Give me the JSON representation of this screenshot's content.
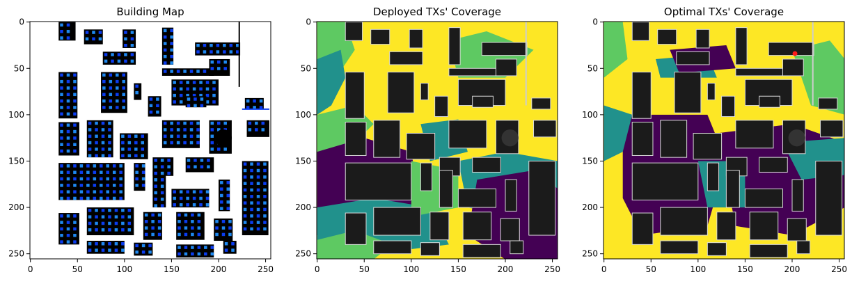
{
  "colors": {
    "building": "#000000",
    "building_gray": "#1b1b1b",
    "building_outline": "#d9d9d9",
    "rx_points": "#0a3cf0",
    "rx_points_alt": "#1e88f0",
    "coverage_high": "#fde725",
    "coverage_mid_high": "#5ec962",
    "coverage_mid": "#21918c",
    "coverage_low": "#440154",
    "tx_marker": "#ff1a1a"
  },
  "chart_data": [
    {
      "type": "heatmap",
      "title": "Building Map",
      "xlim": [
        0,
        255
      ],
      "ylim": [
        255,
        0
      ],
      "xticks": [
        0,
        50,
        100,
        150,
        200,
        250
      ],
      "yticks": [
        0,
        50,
        100,
        150,
        200,
        250
      ]
    },
    {
      "type": "heatmap",
      "title": "Deployed TXs' Coverage",
      "xlim": [
        0,
        255
      ],
      "ylim": [
        255,
        0
      ],
      "xticks": [
        0,
        50,
        100,
        150,
        200,
        250
      ],
      "yticks": [
        0,
        50,
        100,
        150,
        200,
        250
      ]
    },
    {
      "type": "heatmap",
      "title": "Optimal TXs' Coverage",
      "xlim": [
        0,
        255
      ],
      "ylim": [
        255,
        0
      ],
      "xticks": [
        0,
        50,
        100,
        150,
        200,
        250
      ],
      "yticks": [
        0,
        50,
        100,
        150,
        200,
        250
      ],
      "tx_markers": [
        {
          "x": 203,
          "y": 34
        }
      ]
    }
  ]
}
